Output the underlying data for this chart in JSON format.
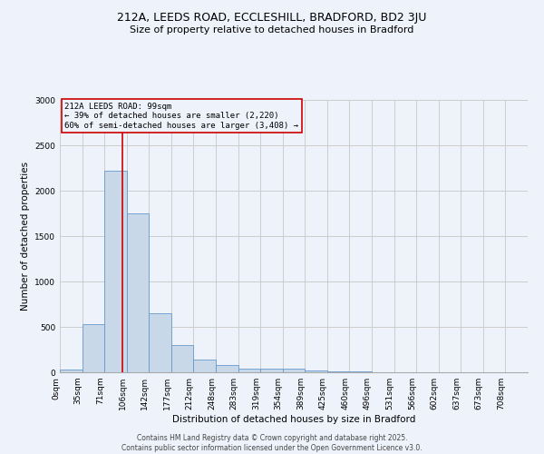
{
  "title": "212A, LEEDS ROAD, ECCLESHILL, BRADFORD, BD2 3JU",
  "subtitle": "Size of property relative to detached houses in Bradford",
  "xlabel": "Distribution of detached houses by size in Bradford",
  "ylabel": "Number of detached properties",
  "footnote1": "Contains HM Land Registry data © Crown copyright and database right 2025.",
  "footnote2": "Contains public sector information licensed under the Open Government Licence v3.0.",
  "bar_labels": [
    "0sqm",
    "35sqm",
    "71sqm",
    "106sqm",
    "142sqm",
    "177sqm",
    "212sqm",
    "248sqm",
    "283sqm",
    "319sqm",
    "354sqm",
    "389sqm",
    "425sqm",
    "460sqm",
    "496sqm",
    "531sqm",
    "566sqm",
    "602sqm",
    "637sqm",
    "673sqm",
    "708sqm"
  ],
  "bar_values": [
    30,
    530,
    2220,
    1750,
    650,
    300,
    140,
    80,
    45,
    40,
    40,
    25,
    15,
    10,
    5,
    3,
    2,
    1,
    1,
    1,
    1
  ],
  "bar_color": "#c8d8e8",
  "bar_edge_color": "#6699cc",
  "grid_color": "#cccccc",
  "background_color": "#eef2fb",
  "annotation_box_color": "#cc0000",
  "vline_color": "#cc0000",
  "annotation_text": "212A LEEDS ROAD: 99sqm\n← 39% of detached houses are smaller (2,220)\n60% of semi-detached houses are larger (3,408) →",
  "ylim": [
    0,
    3000
  ],
  "yticks": [
    0,
    500,
    1000,
    1500,
    2000,
    2500,
    3000
  ],
  "title_fontsize": 9,
  "subtitle_fontsize": 8,
  "axis_label_fontsize": 7.5,
  "tick_fontsize": 6.5,
  "annot_fontsize": 6.5,
  "footnote_fontsize": 5.5
}
